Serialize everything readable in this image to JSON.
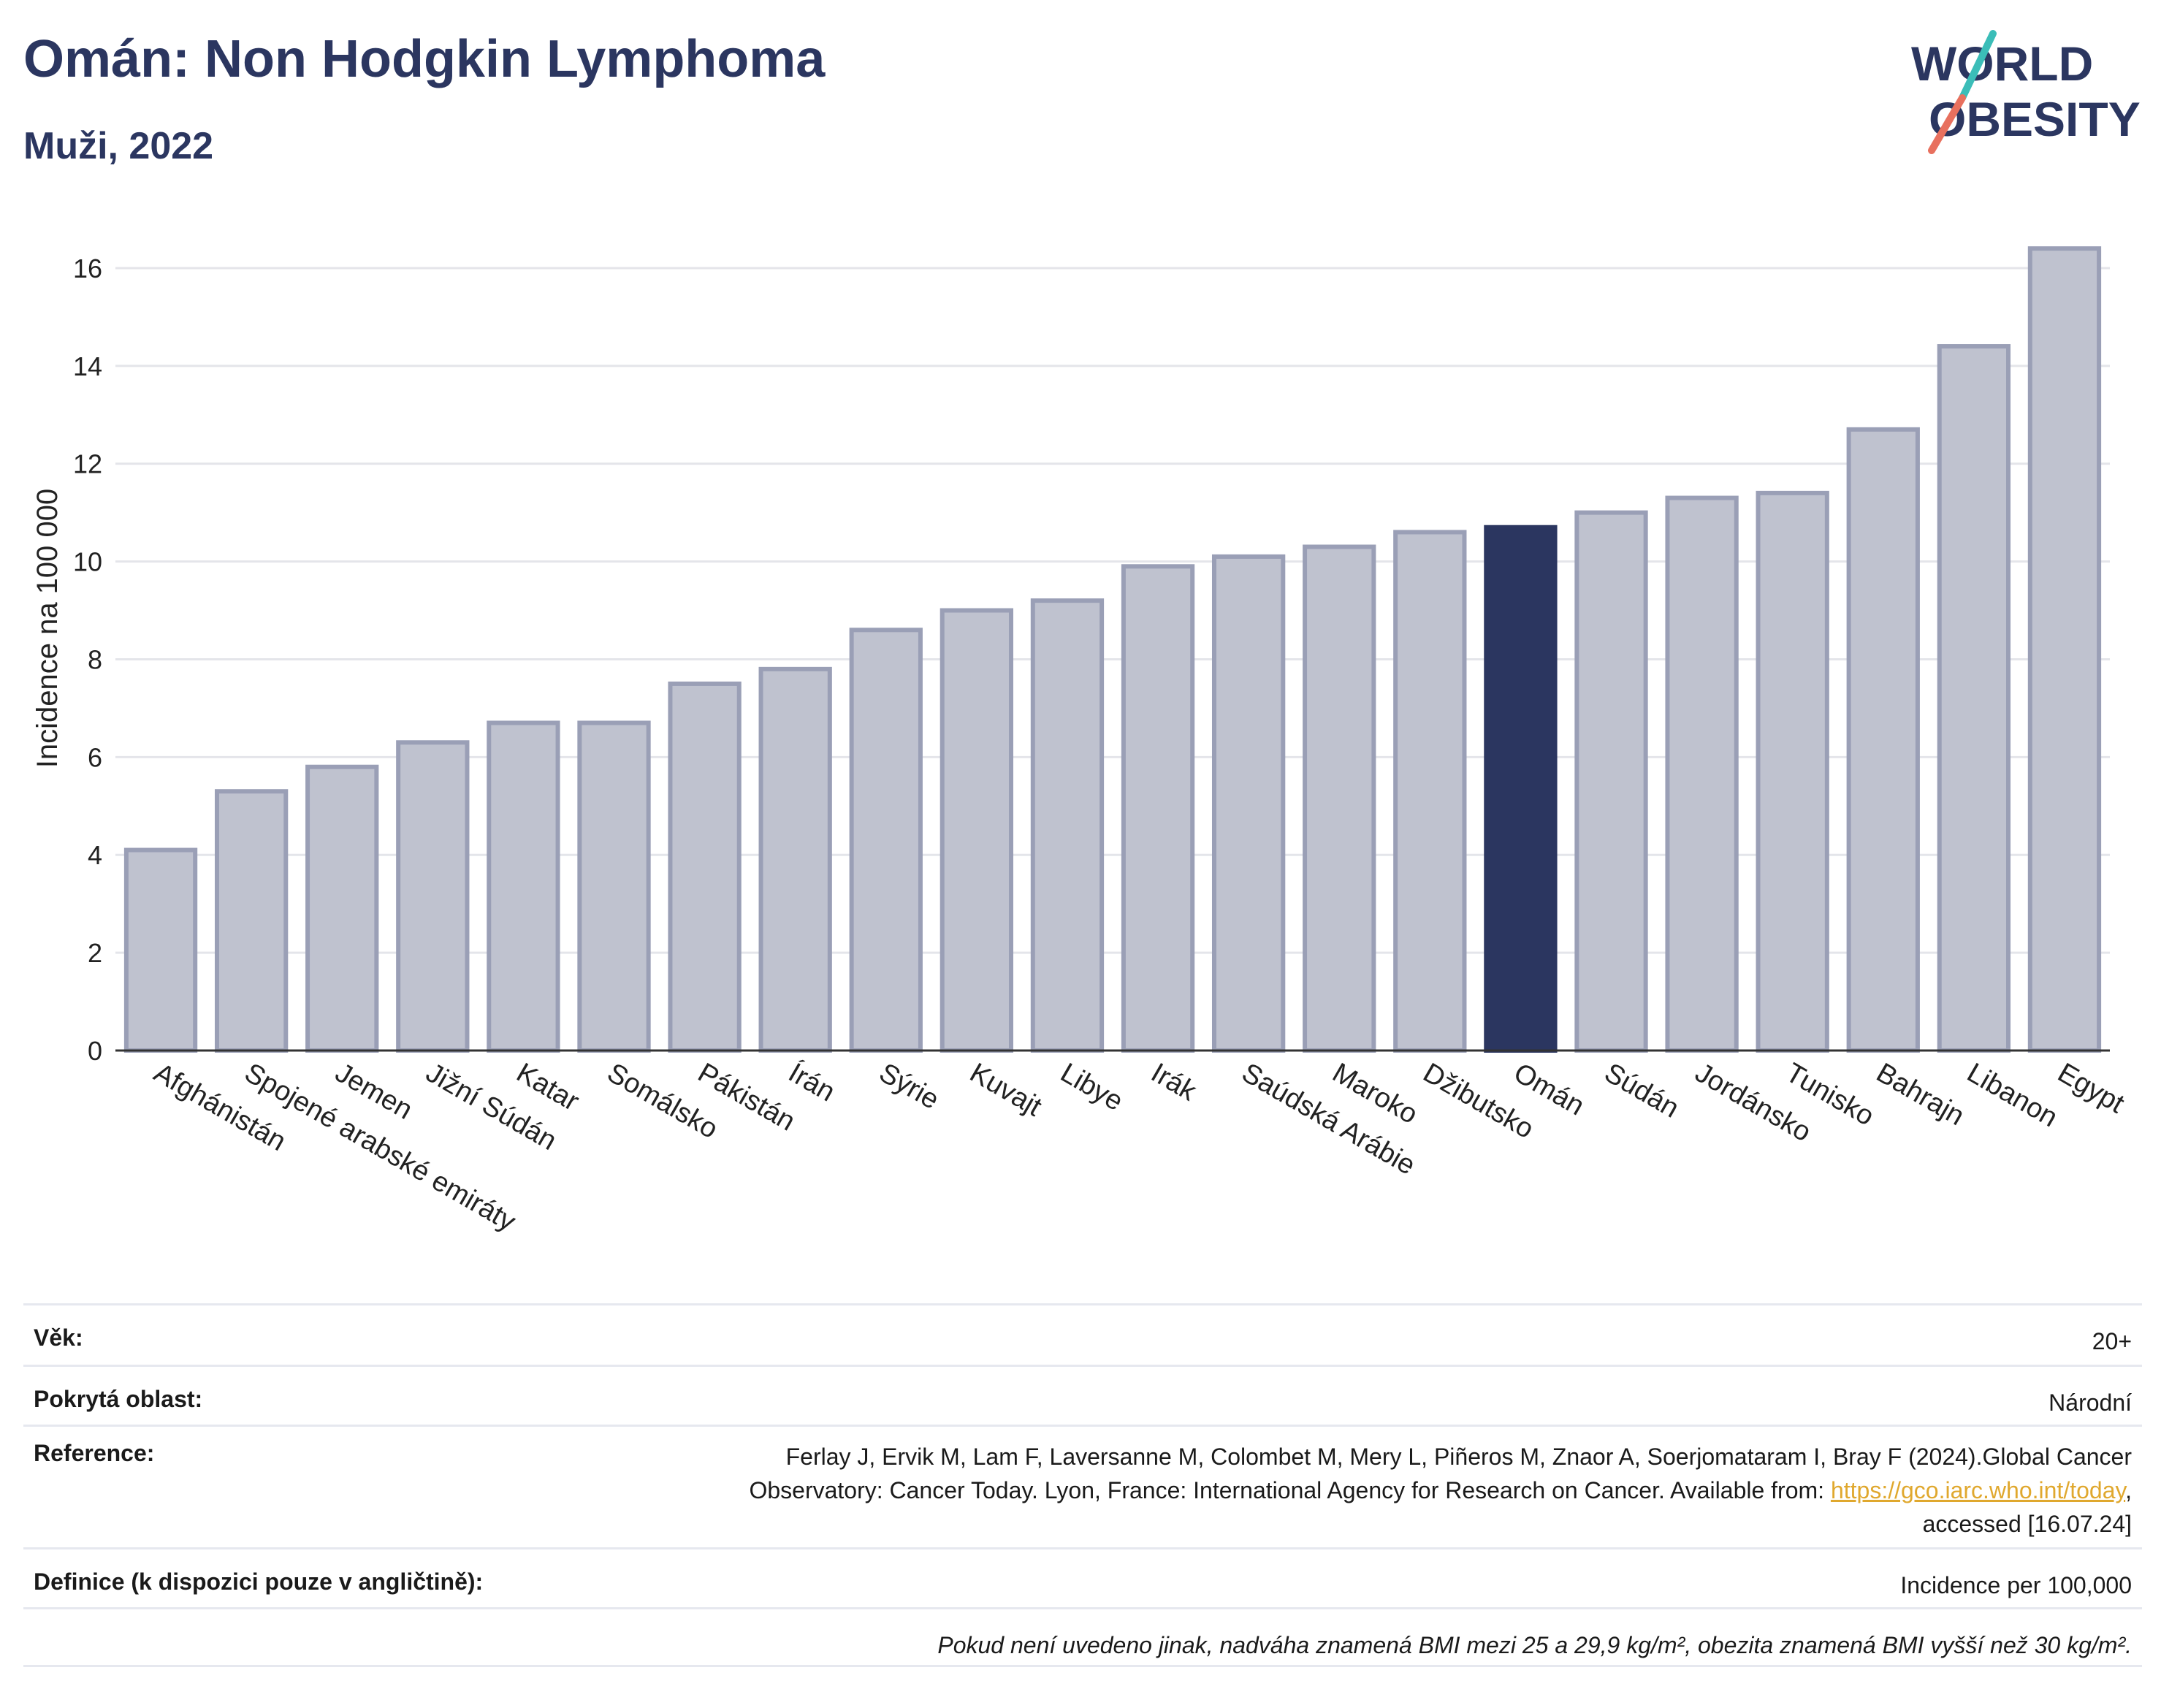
{
  "header": {
    "title": "Omán: Non Hodgkin Lymphoma",
    "subtitle": "Muži, 2022",
    "logo_line1": "WORLD",
    "logo_line2": "OBESITY"
  },
  "colors": {
    "highlight": "#2b3660",
    "bar": "#bfc2cf",
    "bar_edge": "#9a9fb6",
    "logo_teal": "#3bbdb8",
    "logo_coral": "#e8705e"
  },
  "chart_data": {
    "type": "bar",
    "ylabel": "Incidence na 100 000",
    "ylim": [
      0,
      17
    ],
    "yticks": [
      0,
      2,
      4,
      6,
      8,
      10,
      12,
      14,
      16
    ],
    "grid": true,
    "highlight": "Omán",
    "categories": [
      "Afghánistán",
      "Spojené arabské emiráty",
      "Jemen",
      "Jižní Súdán",
      "Katar",
      "Somálsko",
      "Pákistán",
      "Írán",
      "Sýrie",
      "Kuvajt",
      "Libye",
      "Irák",
      "Saúdská Arábie",
      "Maroko",
      "Džibutsko",
      "Omán",
      "Súdán",
      "Jordánsko",
      "Tunisko",
      "Bahrajn",
      "Libanon",
      "Egypt"
    ],
    "values": [
      4.1,
      5.3,
      5.8,
      6.3,
      6.7,
      6.7,
      7.5,
      7.8,
      8.6,
      9.0,
      9.2,
      9.9,
      10.1,
      10.3,
      10.6,
      10.7,
      11.0,
      11.3,
      11.4,
      12.7,
      14.4,
      16.4
    ]
  },
  "meta": {
    "age_label": "Věk:",
    "age_value": "20+",
    "area_label": "Pokrytá oblast:",
    "area_value": "Národní",
    "ref_label": "Reference:",
    "ref_line1": "Ferlay J, Ervik M, Lam F, Laversanne M, Colombet M, Mery L, Piñeros M, Znaor A, Soerjomataram I, Bray F (2024).Global Cancer",
    "ref_line2": "Observatory: Cancer Today. Lyon, France: International Agency for Research on Cancer. Available from: ",
    "ref_link": "https://gco.iarc.who.int/today",
    "ref_line2_end": ",",
    "ref_line3": "accessed [16.07.24]",
    "def_label": "Definice (k dispozici pouze v angličtině):",
    "def_value": "Incidence per 100,000",
    "note": "Pokud není uvedeno jinak, nadváha znamená BMI mezi 25 a 29,9 kg/m², obezita znamená BMI vyšší než 30 kg/m²."
  }
}
